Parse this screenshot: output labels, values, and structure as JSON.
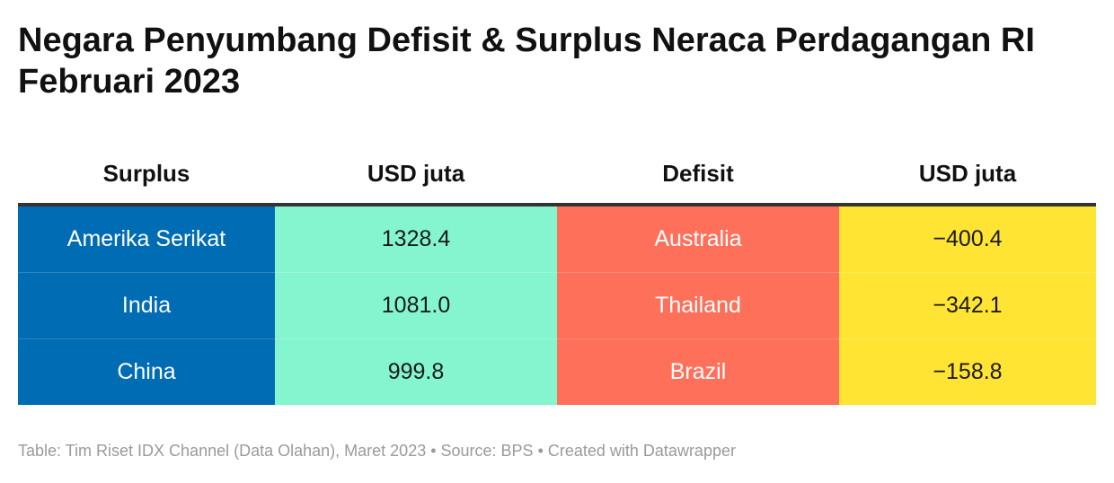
{
  "title": "Negara Penyumbang Defisit & Surplus Neraca Perdagangan RI Februari 2023",
  "colors": {
    "surplus_country": "#006CB4",
    "surplus_value": "#84F5CE",
    "deficit_country": "#FF705A",
    "deficit_value": "#FFE434"
  },
  "chart_data": {
    "type": "table",
    "columns": [
      "Surplus",
      "USD juta",
      "Defisit",
      "USD juta"
    ],
    "rows": [
      [
        "Amerika Serikat",
        "1328.4",
        "Australia",
        "−400.4"
      ],
      [
        "India",
        "1081.0",
        "Thailand",
        "−342.1"
      ],
      [
        "China",
        "999.8",
        "Brazil",
        "−158.8"
      ]
    ]
  },
  "footer": {
    "text": "Table: Tim Riset IDX Channel (Data Olahan), Maret 2023 • Source: BPS • Created with Datawrapper"
  }
}
